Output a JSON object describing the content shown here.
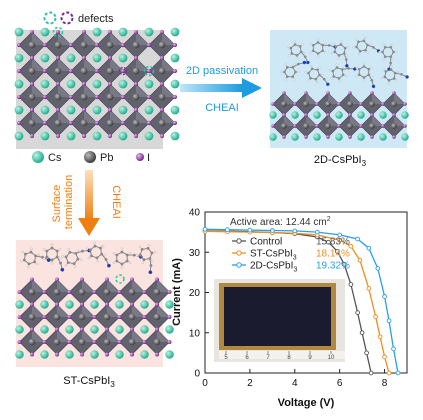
{
  "legend_top": {
    "defects": "defects"
  },
  "legend_atoms": {
    "cs": "Cs",
    "pb": "Pb",
    "i": "I"
  },
  "arrow_right": {
    "top": "2D passivation",
    "bottom": "CHEAI"
  },
  "arrow_down": {
    "left_line1": "Surface",
    "left_line2": "termination",
    "right": "CHEAI"
  },
  "panels": {
    "top_right": "2D-CsPbI",
    "bottom_left": "ST-CsPbI",
    "subscript": "3"
  },
  "colors": {
    "cs": "#2ec4a0",
    "pb": "#555555",
    "i": "#7a2a8a",
    "octa": "#5f5f6b",
    "arrow_blue": "#2aa7e0",
    "arrow_orange": "#f08a18",
    "control": "#555555",
    "st": "#f28c1e",
    "d2": "#2a9fe8"
  },
  "chart_data": {
    "type": "line",
    "annotation": "Active area: 12.44 cm",
    "annotation_sup": "2",
    "xlabel": "Voltage (V)",
    "ylabel": "Current (mA)",
    "xlim": [
      0,
      9
    ],
    "ylim": [
      0,
      40
    ],
    "xticks": [
      0,
      2,
      4,
      6,
      8
    ],
    "yticks": [
      0,
      10,
      20,
      30,
      40
    ],
    "series": [
      {
        "name": "Control",
        "sub": "",
        "eff": "15.83%",
        "color": "#555555",
        "x": [
          0,
          1,
          2,
          3,
          4,
          5,
          5.5,
          5.9,
          6.2,
          6.5,
          6.8,
          7.0,
          7.2,
          7.4
        ],
        "y": [
          35.3,
          35.2,
          35.1,
          34.9,
          34.6,
          33.8,
          32.5,
          30.2,
          27.0,
          22.0,
          15.0,
          10.0,
          5.0,
          0
        ]
      },
      {
        "name": "ST-CsPbI",
        "sub": "3",
        "eff": "18.14%",
        "color": "#f28c1e",
        "x": [
          0,
          1,
          2,
          3,
          4,
          5,
          6,
          6.5,
          6.9,
          7.3,
          7.6,
          7.8,
          8.0,
          8.2
        ],
        "y": [
          35.2,
          35.1,
          35.0,
          34.9,
          34.7,
          34.3,
          33.0,
          31.5,
          28.0,
          21.0,
          14.0,
          9.0,
          4.0,
          0
        ]
      },
      {
        "name": "2D-CsPbI",
        "sub": "3",
        "eff": "19.32%",
        "color": "#2a9fe8",
        "x": [
          0,
          1,
          2,
          3,
          4,
          5,
          6,
          6.8,
          7.3,
          7.7,
          8.0,
          8.2,
          8.4,
          8.6
        ],
        "y": [
          35.7,
          35.6,
          35.5,
          35.4,
          35.3,
          35.0,
          34.3,
          33.3,
          31.0,
          26.0,
          19.0,
          13.0,
          6.0,
          0
        ]
      }
    ],
    "inset_ruler": [
      "5",
      "6",
      "7",
      "8",
      "9",
      "10"
    ]
  }
}
